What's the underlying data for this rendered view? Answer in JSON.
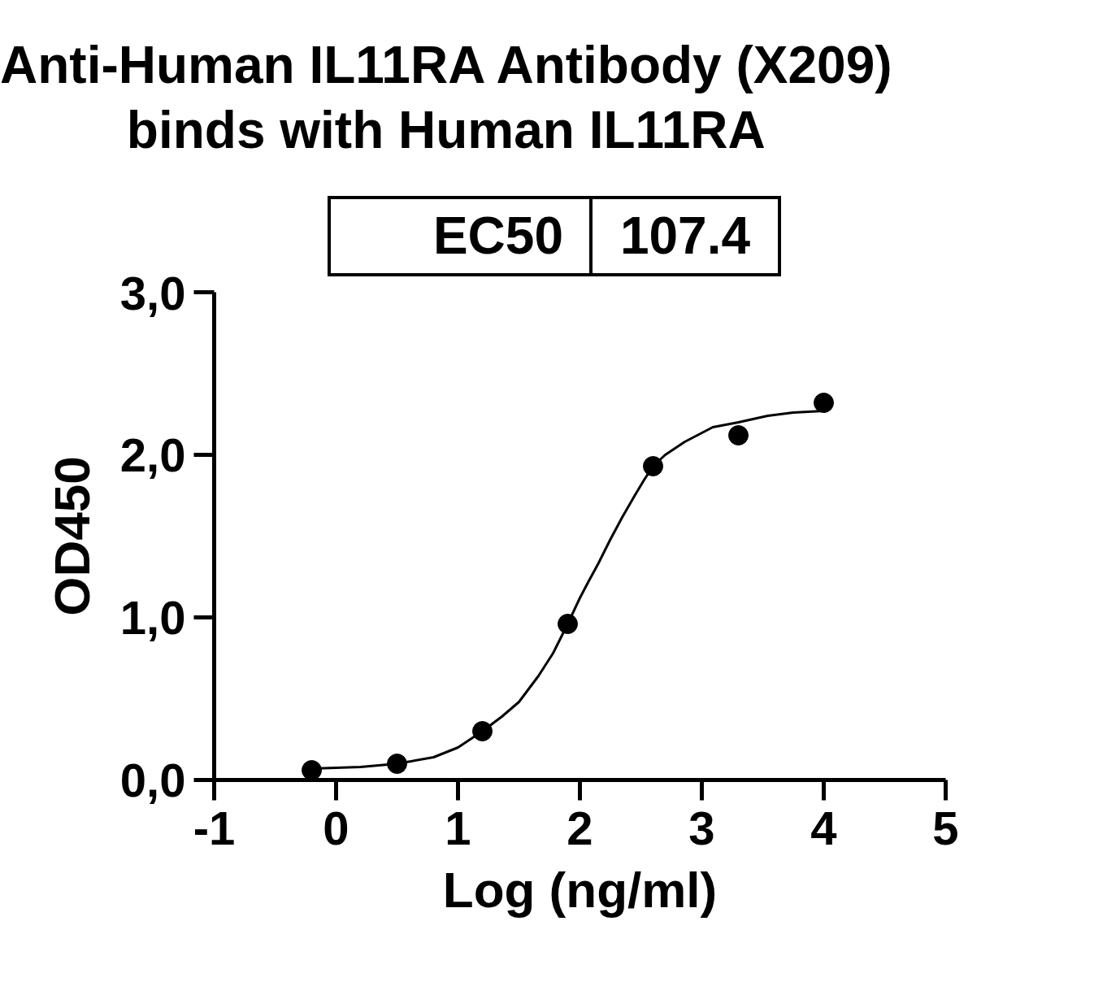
{
  "chart_data": {
    "type": "scatter",
    "title": "Anti-Human IL11RA Antibody (X209)\nbinds with Human IL11RA",
    "xlabel": "Log (ng/ml)",
    "ylabel": "OD450",
    "annotations": [
      "EC50",
      "107.4"
    ],
    "xlim": [
      -1,
      5
    ],
    "ylim": [
      0,
      3
    ],
    "xticks": [
      -1,
      0,
      1,
      2,
      3,
      4,
      5
    ],
    "yticks": [
      {
        "value": 0,
        "label": "0,0"
      },
      {
        "value": 1,
        "label": "1,0"
      },
      {
        "value": 2,
        "label": "2,0"
      },
      {
        "value": 3,
        "label": "3,0"
      }
    ],
    "grid": false,
    "line_style": "solid",
    "series": [
      {
        "marker": "circle",
        "color": "#000000",
        "x": [
          -0.2,
          0.5,
          1.2,
          1.9,
          2.6,
          3.3,
          4.0
        ],
        "values": [
          0.06,
          0.1,
          0.3,
          0.96,
          1.93,
          2.12,
          2.32
        ]
      },
      {
        "type": "line",
        "marker": "none",
        "color": "#000000",
        "x": [
          -0.2,
          0.2,
          0.5,
          0.8,
          1.0,
          1.2,
          1.36,
          1.5,
          1.66,
          1.78,
          1.9,
          2.0,
          2.07,
          2.15,
          2.25,
          2.35,
          2.45,
          2.53,
          2.6,
          2.7,
          2.86,
          3.09,
          3.3,
          3.54,
          3.75,
          4.0
        ],
        "values": [
          0.07,
          0.08,
          0.1,
          0.14,
          0.2,
          0.3,
          0.39,
          0.48,
          0.64,
          0.78,
          0.96,
          1.12,
          1.22,
          1.33,
          1.48,
          1.62,
          1.75,
          1.85,
          1.93,
          2.0,
          2.08,
          2.17,
          2.2,
          2.24,
          2.26,
          2.27
        ]
      }
    ]
  }
}
